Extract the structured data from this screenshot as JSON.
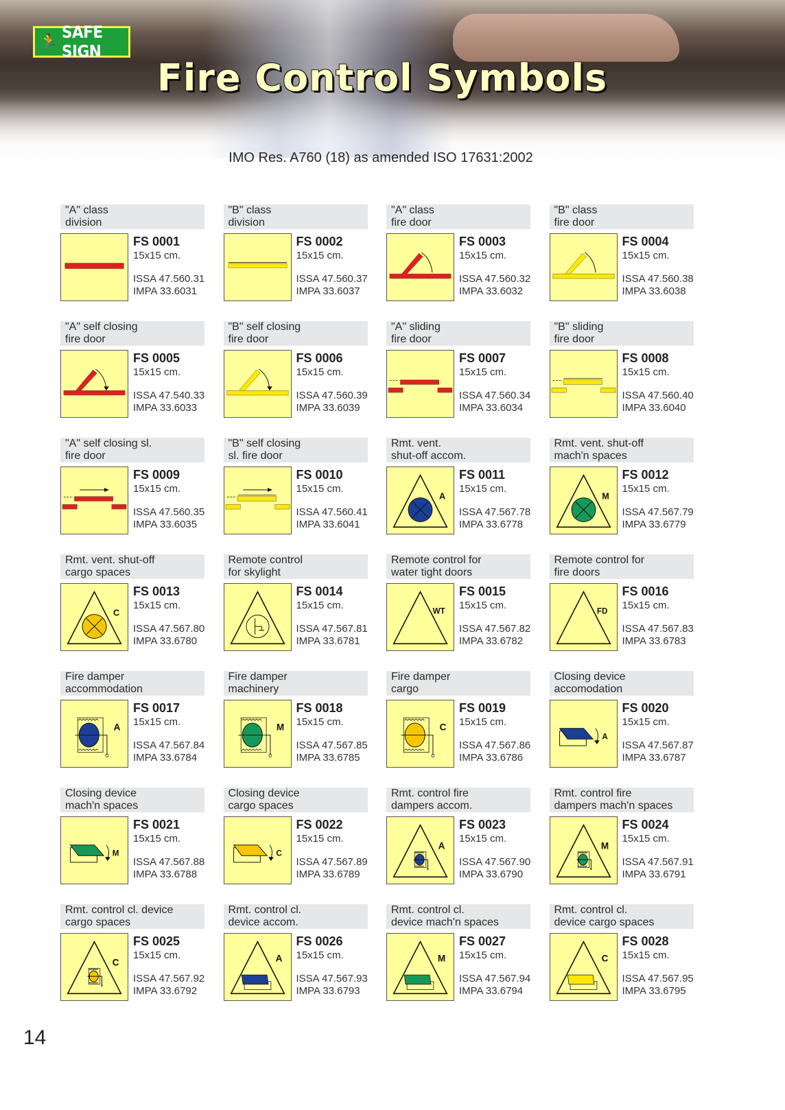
{
  "header": {
    "logo_text": "SAFE SIGN",
    "title": "Fire Control Symbols",
    "subtitle": "IMO Res. A760 (18) as amended ISO 17631:2002"
  },
  "colors": {
    "red": "#e0201e",
    "yellow": "#ffe800",
    "blue": "#1c3f96",
    "green": "#17985a",
    "amber": "#f6c700",
    "sign_bg": "#ffff9c",
    "label_bg": "#e6e7e8"
  },
  "items": [
    {
      "label1": "\"A\" class",
      "label2": "division",
      "code": "FS 0001",
      "size": "15x15 cm.",
      "issa": "ISSA 47.560.31",
      "impa": "IMPA 33.6031",
      "symbol": "division",
      "color": "red",
      "letter": ""
    },
    {
      "label1": "\"B\" class",
      "label2": "division",
      "code": "FS 0002",
      "size": "15x15 cm.",
      "issa": "ISSA 47.560.37",
      "impa": "IMPA 33.6037",
      "symbol": "division",
      "color": "yellow",
      "letter": ""
    },
    {
      "label1": "\"A\" class",
      "label2": "fire door",
      "code": "FS 0003",
      "size": "15x15 cm.",
      "issa": "ISSA 47.560.32",
      "impa": "IMPA 33.6032",
      "symbol": "hinged-door",
      "color": "red",
      "letter": ""
    },
    {
      "label1": "\"B\" class",
      "label2": "fire door",
      "code": "FS 0004",
      "size": "15x15 cm.",
      "issa": "ISSA 47.560.38",
      "impa": "IMPA 33.6038",
      "symbol": "hinged-door",
      "color": "yellow",
      "letter": ""
    },
    {
      "label1": "\"A\" self closing",
      "label2": "fire door",
      "code": "FS 0005",
      "size": "15x15 cm.",
      "issa": "ISSA 47.540.33",
      "impa": "IMPA 33.6033",
      "symbol": "self-closing-door",
      "color": "red",
      "letter": ""
    },
    {
      "label1": "\"B\" self closing",
      "label2": "fire door",
      "code": "FS 0006",
      "size": "15x15 cm.",
      "issa": "ISSA 47.560.39",
      "impa": "IMPA 33.6039",
      "symbol": "self-closing-door",
      "color": "yellow",
      "letter": ""
    },
    {
      "label1": "\"A\" sliding",
      "label2": "fire door",
      "code": "FS 0007",
      "size": "15x15 cm.",
      "issa": "ISSA 47.560.34",
      "impa": "IMPA 33.6034",
      "symbol": "sliding-door",
      "color": "red",
      "letter": ""
    },
    {
      "label1": "\"B\" sliding",
      "label2": "fire door",
      "code": "FS 0008",
      "size": "15x15 cm.",
      "issa": "ISSA 47.560.40",
      "impa": "IMPA 33.6040",
      "symbol": "sliding-door",
      "color": "yellow",
      "letter": ""
    },
    {
      "label1": "\"A\" self closing sl.",
      "label2": "fire door",
      "code": "FS 0009",
      "size": "15x15 cm.",
      "issa": "ISSA 47.560.35",
      "impa": "IMPA 33.6035",
      "symbol": "self-closing-sliding-door",
      "color": "red",
      "letter": ""
    },
    {
      "label1": "\"B\" self closing",
      "label2": "sl. fire door",
      "code": "FS 0010",
      "size": "15x15 cm.",
      "issa": "ISSA 47.560.41",
      "impa": "IMPA 33.6041",
      "symbol": "self-closing-sliding-door",
      "color": "yellow",
      "letter": ""
    },
    {
      "label1": "Rmt. vent.",
      "label2": "shut-off accom.",
      "code": "FS 0011",
      "size": "15x15 cm.",
      "issa": "ISSA 47.567.78",
      "impa": "IMPA 33.6778",
      "symbol": "vent-shutoff",
      "color": "blue",
      "letter": "A"
    },
    {
      "label1": "Rmt. vent. shut-off",
      "label2": "mach'n spaces",
      "code": "FS 0012",
      "size": "15x15 cm.",
      "issa": "ISSA 47.567.79",
      "impa": "IMPA 33.6779",
      "symbol": "vent-shutoff",
      "color": "green",
      "letter": "M"
    },
    {
      "label1": "Rmt. vent. shut-off",
      "label2": "cargo spaces",
      "code": "FS 0013",
      "size": "15x15 cm.",
      "issa": "ISSA 47.567.80",
      "impa": "IMPA 33.6780",
      "symbol": "vent-shutoff",
      "color": "amber",
      "letter": "C"
    },
    {
      "label1": "Remote control",
      "label2": "for skylight",
      "code": "FS 0014",
      "size": "15x15 cm.",
      "issa": "ISSA 47.567.81",
      "impa": "IMPA 33.6781",
      "symbol": "skylight",
      "color": "",
      "letter": ""
    },
    {
      "label1": "Remote control for",
      "label2": "water tight doors",
      "code": "FS 0015",
      "size": "15x15 cm.",
      "issa": "ISSA 47.567.82",
      "impa": "IMPA 33.6782",
      "symbol": "triangle-letter",
      "color": "",
      "letter": "WT"
    },
    {
      "label1": "Remote control for",
      "label2": "fire doors",
      "code": "FS 0016",
      "size": "15x15 cm.",
      "issa": "ISSA 47.567.83",
      "impa": "IMPA 33.6783",
      "symbol": "triangle-letter",
      "color": "",
      "letter": "FD"
    },
    {
      "label1": "Fire damper",
      "label2": "accommodation",
      "code": "FS 0017",
      "size": "15x15 cm.",
      "issa": "ISSA 47.567.84",
      "impa": "IMPA 33.6784",
      "symbol": "fire-damper",
      "color": "blue",
      "letter": "A"
    },
    {
      "label1": "Fire damper",
      "label2": "machinery",
      "code": "FS 0018",
      "size": "15x15 cm.",
      "issa": "ISSA 47.567.85",
      "impa": "IMPA 33.6785",
      "symbol": "fire-damper",
      "color": "green",
      "letter": "M"
    },
    {
      "label1": "Fire damper",
      "label2": "cargo",
      "code": "FS 0019",
      "size": "15x15 cm.",
      "issa": "ISSA 47.567.86",
      "impa": "IMPA 33.6786",
      "symbol": "fire-damper",
      "color": "amber",
      "letter": "C"
    },
    {
      "label1": "Closing device",
      "label2": "accomodation",
      "code": "FS 0020",
      "size": "15x15 cm.",
      "issa": "ISSA 47.567.87",
      "impa": "IMPA 33.6787",
      "symbol": "closing-device",
      "color": "blue",
      "letter": "A"
    },
    {
      "label1": "Closing device",
      "label2": "mach'n spaces",
      "code": "FS 0021",
      "size": "15x15 cm.",
      "issa": "ISSA 47.567.88",
      "impa": "IMPA 33.6788",
      "symbol": "closing-device",
      "color": "green",
      "letter": "M"
    },
    {
      "label1": "Closing device",
      "label2": "cargo spaces",
      "code": "FS 0022",
      "size": "15x15 cm.",
      "issa": "ISSA 47.567.89",
      "impa": "IMPA 33.6789",
      "symbol": "closing-device",
      "color": "amber",
      "letter": "C"
    },
    {
      "label1": "Rmt. control fire",
      "label2": "dampers accom.",
      "code": "FS 0023",
      "size": "15x15 cm.",
      "issa": "ISSA 47.567.90",
      "impa": "IMPA 33.6790",
      "symbol": "remote-damper",
      "color": "blue",
      "letter": "A"
    },
    {
      "label1": "Rmt. control fire",
      "label2": "dampers mach'n spaces",
      "code": "FS 0024",
      "size": "15x15 cm.",
      "issa": "ISSA 47.567.91",
      "impa": "IMPA 33.6791",
      "symbol": "remote-damper",
      "color": "green",
      "letter": "M"
    },
    {
      "label1": "Rmt. control cl. device",
      "label2": "cargo spaces",
      "code": "FS 0025",
      "size": "15x15 cm.",
      "issa": "ISSA 47.567.92",
      "impa": "IMPA 33.6792",
      "symbol": "remote-damper",
      "color": "amber",
      "letter": "C"
    },
    {
      "label1": "Rmt. control cl.",
      "label2": "device accom.",
      "code": "FS 0026",
      "size": "15x15 cm.",
      "issa": "ISSA 47.567.93",
      "impa": "IMPA 33.6793",
      "symbol": "remote-closing",
      "color": "blue",
      "letter": "A"
    },
    {
      "label1": "Rmt. control cl.",
      "label2": "device mach'n spaces",
      "code": "FS 0027",
      "size": "15x15 cm.",
      "issa": "ISSA 47.567.94",
      "impa": "IMPA 33.6794",
      "symbol": "remote-closing",
      "color": "green",
      "letter": "M"
    },
    {
      "label1": "Rmt. control cl.",
      "label2": "device cargo spaces",
      "code": "FS 0028",
      "size": "15x15 cm.",
      "issa": "ISSA 47.567.95",
      "impa": "IMPA 33.6795",
      "symbol": "remote-closing",
      "color": "yellow",
      "letter": "C"
    }
  ],
  "page_number": "14"
}
